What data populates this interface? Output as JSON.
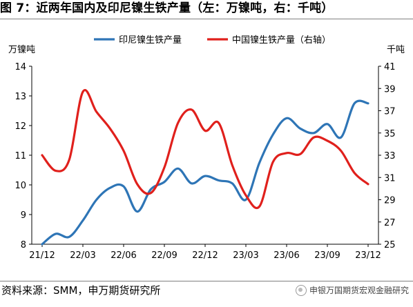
{
  "figure": {
    "title": "图 7：近两年国内及印尼镍生铁产量（左：万镍吨，右：千吨）",
    "source": "资料来源：SMM，申万期货研究所",
    "brand": "申银万国期货宏观金融研究",
    "brand_icon": "wechat-icon"
  },
  "chart_data": {
    "type": "line",
    "x_ticks": [
      "21/12",
      "22/03",
      "22/06",
      "22/09",
      "22/12",
      "23/03",
      "23/06",
      "23/09",
      "23/12"
    ],
    "left_axis": {
      "label": "万镍吨",
      "ylim": [
        8,
        14
      ],
      "ticks": [
        8,
        9,
        10,
        11,
        12,
        13,
        14
      ]
    },
    "right_axis": {
      "label": "千吨",
      "ylim": [
        25,
        41
      ],
      "ticks": [
        25,
        27,
        29,
        31,
        33,
        35,
        37,
        39,
        41
      ]
    },
    "legend_position": "top",
    "series": [
      {
        "name": "印尼镍生铁产量",
        "axis": "left",
        "color": "#2e75b6",
        "x": [
          "21/12",
          "22/01",
          "22/02",
          "22/03",
          "22/04",
          "22/05",
          "22/06",
          "22/07",
          "22/08",
          "22/09",
          "22/10",
          "22/11",
          "22/12",
          "23/01",
          "23/02",
          "23/03",
          "23/04",
          "23/05",
          "23/06",
          "23/07",
          "23/08",
          "23/09",
          "23/10",
          "23/11",
          "23/12"
        ],
        "values": [
          8.0,
          8.35,
          8.25,
          8.8,
          9.5,
          9.9,
          9.95,
          9.1,
          9.85,
          10.1,
          10.55,
          10.05,
          10.3,
          10.15,
          10.05,
          9.5,
          10.75,
          11.7,
          12.25,
          11.9,
          11.75,
          12.05,
          11.6,
          12.75,
          12.75
        ]
      },
      {
        "name": "中国镍生铁产量（右轴）",
        "axis": "right",
        "color": "#e0201c",
        "x": [
          "21/12",
          "22/01",
          "22/02",
          "22/03",
          "22/04",
          "22/05",
          "22/06",
          "22/07",
          "22/08",
          "22/09",
          "22/10",
          "22/11",
          "22/12",
          "23/01",
          "23/02",
          "23/03",
          "23/04",
          "23/05",
          "23/06",
          "23/07",
          "23/08",
          "23/09",
          "23/10",
          "23/11",
          "23/12"
        ],
        "values": [
          33.0,
          31.6,
          32.6,
          38.7,
          36.9,
          35.4,
          33.4,
          30.4,
          29.6,
          31.9,
          35.9,
          37.1,
          35.2,
          35.9,
          32.1,
          29.4,
          28.4,
          32.4,
          33.2,
          33.1,
          34.6,
          34.3,
          33.4,
          31.4,
          30.4
        ]
      }
    ]
  }
}
